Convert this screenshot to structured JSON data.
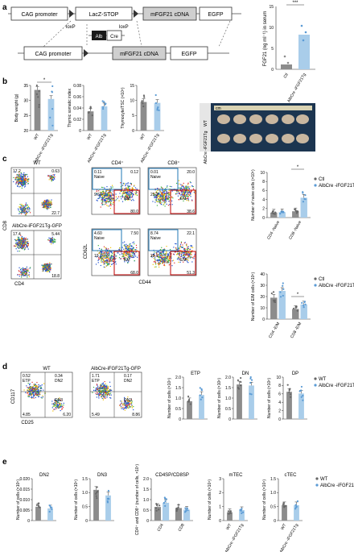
{
  "panels": {
    "a": {
      "label": "a",
      "construct": {
        "promoter": "CAG promoter",
        "stop": "LacZ-STOP",
        "cdna": "mFGF21 cDNA",
        "egfp": "EGFP",
        "loxp1": "loxP",
        "loxp2": "loxP",
        "alb": "Alb",
        "cre": "Cre"
      },
      "serum_chart": {
        "ylabel": "FGF21 (ng ml⁻¹) in serum",
        "yticks": [
          "0",
          "5",
          "10",
          "15"
        ],
        "categories": [
          "Ctl",
          "AlbCre -iFGF21Tg"
        ],
        "significance": "***"
      }
    },
    "b": {
      "label": "b",
      "charts": [
        {
          "ylabel": "Body weight (g)",
          "yticks": [
            "20",
            "25",
            "30",
            "35"
          ],
          "categories": [
            "WT",
            "AlbCre -iFGF21Tg"
          ],
          "significance": "*"
        },
        {
          "ylabel": "Thymic somatic index",
          "yticks": [
            "0",
            "0.02",
            "0.04",
            "0.06",
            "0.08"
          ],
          "categories": [
            "WT",
            "AlbCre -iFGF21Tg"
          ]
        },
        {
          "ylabel": "Thymocyte/TSC (×10⁵)",
          "yticks": [
            "0",
            "5",
            "10",
            "15"
          ],
          "categories": [
            "WT",
            "AlbCre -iFGF21Tg"
          ]
        }
      ],
      "photo": {
        "cm": "cm",
        "row1": "WT",
        "row2": "AlbCre -iFGF21Tg"
      }
    },
    "c": {
      "label": "c",
      "flow": {
        "wt_title": "WT",
        "tg_title": "AlbCre-iFGF21Tg-GFP",
        "cd4_title": "CD4⁺",
        "cd8_title": "CD8⁺",
        "x_cd4": "CD4",
        "y_cd8": "CD8",
        "x_cd44": "CD44",
        "y_cd62l": "CD62L",
        "naive": "Naive",
        "em": "EM",
        "wt_q": [
          "17.2",
          "0.63",
          "22.7"
        ],
        "tg_q": [
          "17.4",
          "5.44",
          "18.8"
        ],
        "wt_cd4": [
          "0.11",
          "0.12",
          "9.64",
          "80.0"
        ],
        "wt_cd8": [
          "0.01",
          "20.0",
          "29.3",
          "38.6"
        ],
        "tg_cd4": [
          "4.60",
          "7.50",
          "19.7",
          "68.0"
        ],
        "tg_cd8": [
          "8.74",
          "22.1",
          "28.9",
          "51.3"
        ]
      },
      "naive_chart": {
        "ylabel": "Number of naive cells (×10⁵)",
        "yticks": [
          "0",
          "2",
          "4",
          "6",
          "8",
          "10"
        ],
        "categories": [
          "CD4 -Naive",
          "CD8 -Naive"
        ],
        "significance": "*"
      },
      "em_chart": {
        "ylabel": "Number of E/M cells (×10⁵)",
        "yticks": [
          "0",
          "10",
          "20",
          "30",
          "40"
        ],
        "categories": [
          "CD4 -E/M",
          "CD8 -E/M"
        ],
        "significance": "*"
      },
      "legend": [
        "Ctl",
        "AlbCre -iFGF21Tg"
      ]
    },
    "d": {
      "label": "d",
      "flow": {
        "wt_title": "WT",
        "tg_title": "AlbCre-iFGF21Tg-GFP",
        "x": "CD25",
        "y": "CD117",
        "wt_q": [
          "0.52",
          "0.34",
          "4.85",
          "6.20"
        ],
        "tg_q": [
          "1.71",
          "0.17",
          "5.49",
          "8.86"
        ],
        "gates": [
          "ETP",
          "DN2",
          "DN3"
        ]
      },
      "charts": [
        {
          "title": "ETP",
          "ylabel": "Number of cells (×10⁴)",
          "yticks": [
            "0",
            "0.5",
            "1.0",
            "1.5",
            "2.0"
          ]
        },
        {
          "title": "DN",
          "ylabel": "Number of cells (×10⁶)",
          "yticks": [
            "0",
            "0.5",
            "1.0",
            "1.5",
            "2.0"
          ]
        },
        {
          "title": "DP",
          "ylabel": "Number of cells (×10⁸)",
          "yticks": [
            "0",
            "2",
            "4",
            "6",
            "8",
            "10"
          ]
        }
      ],
      "legend": [
        "WT",
        "AlbCre -iFGF21Tg"
      ]
    },
    "e": {
      "label": "e",
      "charts": [
        {
          "title": "DN2",
          "ylabel": "Number of cells (×10⁵)",
          "yticks": [
            "0",
            "0.005",
            "0.010",
            "0.015",
            "0.020"
          ]
        },
        {
          "title": "DN3",
          "ylabel": "Number of cells (×10⁵)",
          "yticks": [
            "0",
            "0.5",
            "1.0",
            "1.5"
          ]
        },
        {
          "title": "CD4SP/CD8SP",
          "ylabel": "CD4⁺ and CD8⁺ (number of cells, ×10⁷)",
          "yticks": [
            "0",
            "0.5",
            "1.0",
            "1.5",
            "2.0"
          ],
          "categories": [
            "CD4",
            "CD8"
          ]
        },
        {
          "title": "mTEC",
          "ylabel": "Number of cells (×10⁴)",
          "yticks": [
            "0",
            "1",
            "2",
            "3"
          ],
          "categories": [
            "WT",
            "AlbCre -iFGF21Tg"
          ]
        },
        {
          "title": "cTEC",
          "ylabel": "Number of cells (×10⁴)",
          "yticks": [
            "0",
            "0.5",
            "1.0",
            "1.5"
          ],
          "categories": [
            "WT",
            "AlbCre -iFGF21Tg"
          ]
        }
      ],
      "legend": [
        "WT",
        "AlbCre -iFGF21Tg"
      ]
    }
  },
  "colors": {
    "ctl": "#8c8c8c",
    "tg": "#a9cdea",
    "tg_dot": "#5b9bd5",
    "box": "#cfcfcf",
    "em_box": "#c00000",
    "naive_box": "#1f77b4"
  },
  "chart_data": [
    {
      "type": "bar",
      "title": "",
      "ylabel": "FGF21 (ng ml⁻¹) in serum",
      "categories": [
        "Ctl",
        "AlbCre-iFGF21Tg"
      ],
      "values": [
        1.2,
        8.3
      ],
      "ylim": [
        0,
        15
      ]
    },
    {
      "type": "bar",
      "ylabel": "Body weight (g)",
      "categories": [
        "WT",
        "AlbCre-iFGF21Tg"
      ],
      "values": [
        33.5,
        30.5
      ],
      "ylim": [
        20,
        35
      ]
    },
    {
      "type": "bar",
      "ylabel": "Thymic somatic index",
      "categories": [
        "WT",
        "AlbCre-iFGF21Tg"
      ],
      "values": [
        0.034,
        0.043
      ],
      "ylim": [
        0,
        0.08
      ]
    },
    {
      "type": "bar",
      "ylabel": "Thymocyte/TSC (×10⁵)",
      "categories": [
        "WT",
        "AlbCre-iFGF21Tg"
      ],
      "values": [
        9.5,
        9.2
      ],
      "ylim": [
        0,
        15
      ]
    },
    {
      "type": "bar",
      "ylabel": "Number of naive cells (×10⁵)",
      "categories": [
        "CD4-Naive",
        "CD8-Naive"
      ],
      "series": [
        {
          "name": "Ctl",
          "values": [
            1.1,
            1.4
          ]
        },
        {
          "name": "AlbCre-iFGF21Tg",
          "values": [
            1.2,
            4.4
          ]
        }
      ],
      "ylim": [
        0,
        10
      ]
    },
    {
      "type": "bar",
      "ylabel": "Number of E/M cells (×10⁵)",
      "categories": [
        "CD4-E/M",
        "CD8-E/M"
      ],
      "series": [
        {
          "name": "Ctl",
          "values": [
            19,
            9
          ]
        },
        {
          "name": "AlbCre-iFGF21Tg",
          "values": [
            25,
            13
          ]
        }
      ],
      "ylim": [
        0,
        40
      ]
    },
    {
      "type": "bar",
      "title": "ETP",
      "categories": [
        "WT",
        "AlbCre-iFGF21Tg"
      ],
      "values": [
        0.85,
        1.15
      ],
      "ylim": [
        0,
        2
      ]
    },
    {
      "type": "bar",
      "title": "DN",
      "categories": [
        "WT",
        "AlbCre-iFGF21Tg"
      ],
      "values": [
        1.65,
        1.6
      ],
      "ylim": [
        0,
        2
      ]
    },
    {
      "type": "bar",
      "title": "DP",
      "categories": [
        "WT",
        "AlbCre-iFGF21Tg"
      ],
      "values": [
        6.5,
        6.1
      ],
      "ylim": [
        0,
        10
      ]
    },
    {
      "type": "bar",
      "title": "DN2",
      "categories": [
        "WT",
        "AlbCre-iFGF21Tg"
      ],
      "values": [
        0.0066,
        0.0058
      ],
      "ylim": [
        0,
        0.02
      ]
    },
    {
      "type": "bar",
      "title": "DN3",
      "categories": [
        "WT",
        "AlbCre-iFGF21Tg"
      ],
      "values": [
        1.1,
        0.9
      ],
      "ylim": [
        0,
        1.5
      ]
    },
    {
      "type": "bar",
      "title": "CD4SP/CD8SP",
      "categories": [
        "CD4",
        "CD8"
      ],
      "series": [
        {
          "name": "WT",
          "values": [
            0.65,
            0.6
          ]
        },
        {
          "name": "AlbCre-iFGF21Tg",
          "values": [
            0.85,
            0.52
          ]
        }
      ],
      "ylim": [
        0,
        2
      ]
    },
    {
      "type": "bar",
      "title": "mTEC",
      "categories": [
        "WT",
        "AlbCre-iFGF21Tg"
      ],
      "values": [
        0.6,
        0.75
      ],
      "ylim": [
        0,
        3
      ]
    },
    {
      "type": "bar",
      "title": "cTEC",
      "categories": [
        "WT",
        "AlbCre-iFGF21Tg"
      ],
      "values": [
        0.55,
        0.55
      ],
      "ylim": [
        0,
        1.5
      ]
    }
  ]
}
